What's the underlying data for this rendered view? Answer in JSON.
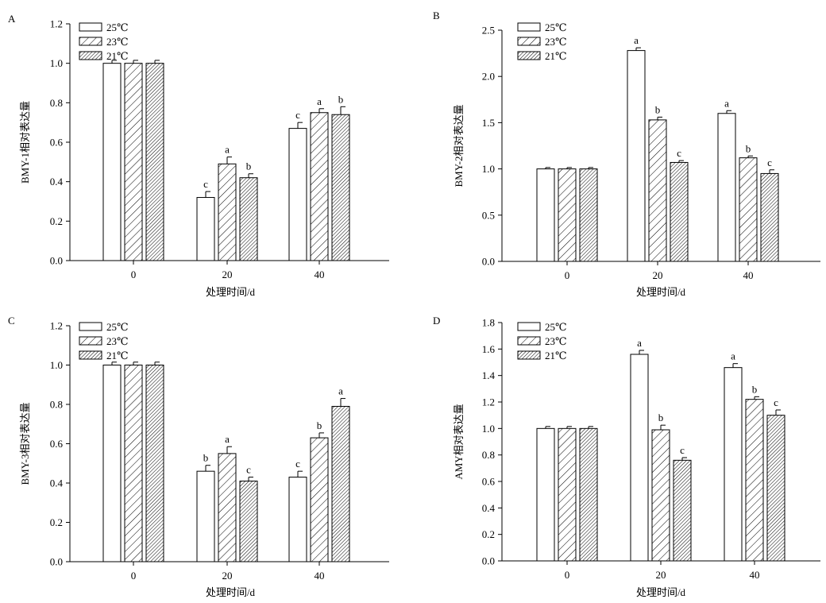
{
  "chart_data": [
    {
      "panel": "A",
      "type": "bar",
      "ylabel": "BMY-1相对表达量",
      "xlabel": "处理时间/d",
      "categories": [
        "0",
        "20",
        "40"
      ],
      "ylim": [
        0,
        1.2
      ],
      "yticks": [
        "0.0",
        "0.2",
        "0.4",
        "0.6",
        "0.8",
        "1.0",
        "1.2"
      ],
      "legend": [
        "25℃",
        "23℃",
        "21℃"
      ],
      "series": [
        {
          "name": "25℃",
          "values": [
            1.0,
            0.32,
            0.67
          ],
          "errors": [
            0.015,
            0.03,
            0.03
          ],
          "letters": [
            "",
            "c",
            "c"
          ]
        },
        {
          "name": "23℃",
          "values": [
            1.0,
            0.49,
            0.75
          ],
          "errors": [
            0.015,
            0.035,
            0.02
          ],
          "letters": [
            "",
            "a",
            "a"
          ]
        },
        {
          "name": "21℃",
          "values": [
            1.0,
            0.42,
            0.74
          ],
          "errors": [
            0.015,
            0.02,
            0.04
          ],
          "letters": [
            "",
            "b",
            "b"
          ]
        }
      ]
    },
    {
      "panel": "B",
      "type": "bar",
      "ylabel": "BMY-2相对表达量",
      "xlabel": "处理时间/d",
      "categories": [
        "0",
        "20",
        "40"
      ],
      "ylim": [
        0,
        2.5
      ],
      "yticks": [
        "0.0",
        "0.5",
        "1.0",
        "1.5",
        "2.0",
        "2.5"
      ],
      "legend": [
        "25℃",
        "23℃",
        "21℃"
      ],
      "series": [
        {
          "name": "25℃",
          "values": [
            1.0,
            2.28,
            1.6
          ],
          "errors": [
            0.015,
            0.03,
            0.03
          ],
          "letters": [
            "",
            "a",
            "a"
          ]
        },
        {
          "name": "23℃",
          "values": [
            1.0,
            1.53,
            1.12
          ],
          "errors": [
            0.015,
            0.03,
            0.02
          ],
          "letters": [
            "",
            "b",
            "b"
          ]
        },
        {
          "name": "21℃",
          "values": [
            1.0,
            1.07,
            0.95
          ],
          "errors": [
            0.015,
            0.02,
            0.04
          ],
          "letters": [
            "",
            "c",
            "c"
          ]
        }
      ]
    },
    {
      "panel": "C",
      "type": "bar",
      "ylabel": "BMY-3相对表达量",
      "xlabel": "处理时间/d",
      "categories": [
        "0",
        "20",
        "40"
      ],
      "ylim": [
        0,
        1.2
      ],
      "yticks": [
        "0.0",
        "0.2",
        "0.4",
        "0.6",
        "0.8",
        "1.0",
        "1.2"
      ],
      "legend": [
        "25℃",
        "23℃",
        "21℃"
      ],
      "series": [
        {
          "name": "25℃",
          "values": [
            1.0,
            0.46,
            0.43
          ],
          "errors": [
            0.015,
            0.03,
            0.03
          ],
          "letters": [
            "",
            "b",
            "c"
          ]
        },
        {
          "name": "23℃",
          "values": [
            1.0,
            0.55,
            0.63
          ],
          "errors": [
            0.015,
            0.035,
            0.025
          ],
          "letters": [
            "",
            "a",
            "b"
          ]
        },
        {
          "name": "21℃",
          "values": [
            1.0,
            0.41,
            0.79
          ],
          "errors": [
            0.015,
            0.02,
            0.04
          ],
          "letters": [
            "",
            "c",
            "a"
          ]
        }
      ]
    },
    {
      "panel": "D",
      "type": "bar",
      "ylabel": "AMY相对表达量",
      "xlabel": "处理时间/d",
      "categories": [
        "0",
        "20",
        "40"
      ],
      "ylim": [
        0,
        1.8
      ],
      "yticks": [
        "0.0",
        "0.2",
        "0.4",
        "0.6",
        "0.8",
        "1.0",
        "1.2",
        "1.4",
        "1.6",
        "1.8"
      ],
      "legend": [
        "25℃",
        "23℃",
        "21℃"
      ],
      "series": [
        {
          "name": "25℃",
          "values": [
            1.0,
            1.56,
            1.46
          ],
          "errors": [
            0.015,
            0.03,
            0.03
          ],
          "letters": [
            "",
            "a",
            "a"
          ]
        },
        {
          "name": "23℃",
          "values": [
            1.0,
            0.99,
            1.22
          ],
          "errors": [
            0.015,
            0.035,
            0.02
          ],
          "letters": [
            "",
            "b",
            "b"
          ]
        },
        {
          "name": "21℃",
          "values": [
            1.0,
            0.76,
            1.1
          ],
          "errors": [
            0.015,
            0.02,
            0.04
          ],
          "letters": [
            "",
            "c",
            "c"
          ]
        }
      ]
    }
  ]
}
